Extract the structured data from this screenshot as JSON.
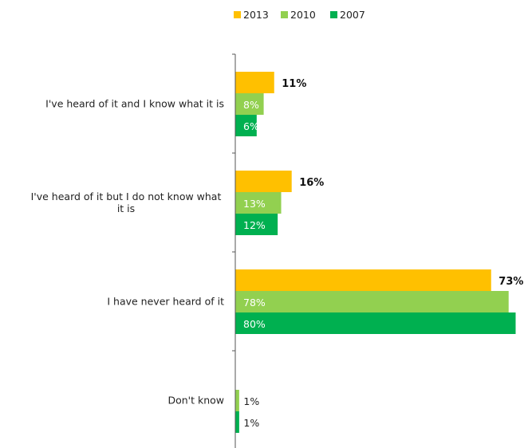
{
  "chart_data": {
    "type": "bar",
    "orientation": "horizontal",
    "title": "",
    "xlabel": "",
    "ylabel": "",
    "categories": [
      "I've heard of it and I know what it is",
      "I've heard of it but I do not know what it is",
      "I have never heard of it",
      "Don't know"
    ],
    "series": [
      {
        "name": "2013",
        "color": "#FFC000",
        "values": [
          11,
          16,
          73,
          null
        ],
        "labels": [
          "11%",
          "16%",
          "73%",
          ""
        ]
      },
      {
        "name": "2010",
        "color": "#92D050",
        "values": [
          8,
          13,
          78,
          1
        ],
        "labels": [
          "8%",
          "13%",
          "78%",
          "1%"
        ]
      },
      {
        "name": "2007",
        "color": "#00B050",
        "values": [
          6,
          12,
          80,
          1
        ],
        "labels": [
          "6%",
          "12%",
          "80%",
          "1%"
        ]
      }
    ],
    "xlim": [
      0,
      80
    ],
    "grid": false,
    "legend_position": "top"
  }
}
